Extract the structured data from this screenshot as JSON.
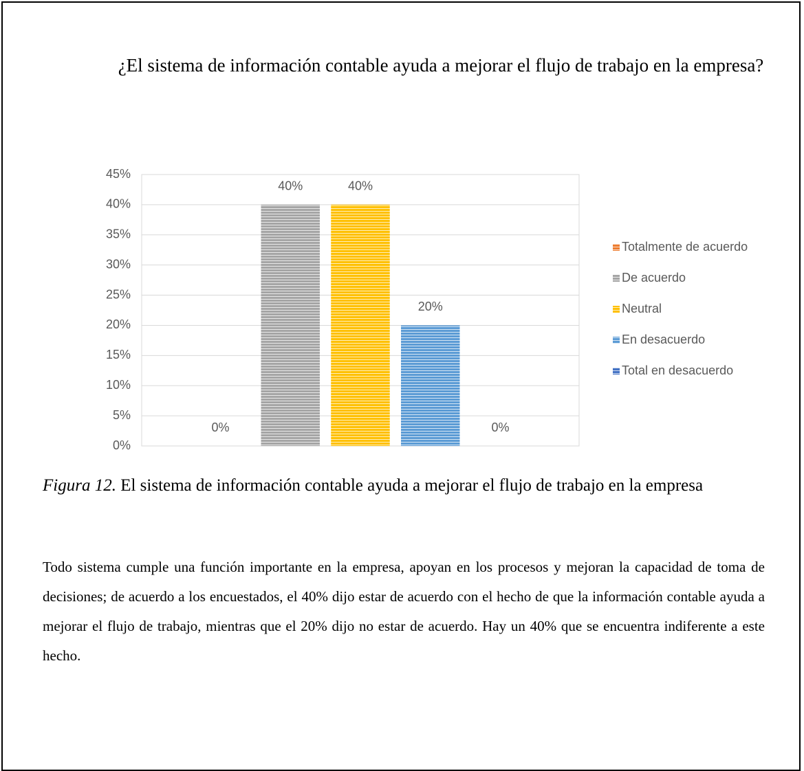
{
  "chart_data": {
    "type": "bar",
    "title": "¿El sistema de información contable ayuda a mejorar el flujo de trabajo en la empresa?",
    "categories": [
      null
    ],
    "series": [
      {
        "name": "Totalmente de acuerdo",
        "color": "#ed7d31",
        "values": [
          0
        ],
        "value_labels": [
          "0%"
        ]
      },
      {
        "name": "De acuerdo",
        "color": "#a5a5a5",
        "values": [
          40
        ],
        "value_labels": [
          "40%"
        ]
      },
      {
        "name": "Neutral",
        "color": "#ffc000",
        "values": [
          40
        ],
        "value_labels": [
          "40%"
        ]
      },
      {
        "name": "En desacuerdo",
        "color": "#5b9bd5",
        "values": [
          20
        ],
        "value_labels": [
          "20%"
        ]
      },
      {
        "name": "Total en desacuerdo",
        "color": "#4472c4",
        "values": [
          0
        ],
        "value_labels": [
          "0%"
        ]
      }
    ],
    "ylim": [
      0,
      45
    ],
    "yticks": [
      {
        "value": 0,
        "label": "0%"
      },
      {
        "value": 5,
        "label": "5%"
      },
      {
        "value": 10,
        "label": "10%"
      },
      {
        "value": 15,
        "label": "15%"
      },
      {
        "value": 20,
        "label": "20%"
      },
      {
        "value": 25,
        "label": "25%"
      },
      {
        "value": 30,
        "label": "30%"
      },
      {
        "value": 35,
        "label": "35%"
      },
      {
        "value": 40,
        "label": "40%"
      },
      {
        "value": 45,
        "label": "45%"
      }
    ],
    "grid": true,
    "legend": "right"
  },
  "caption": {
    "label": "Figura 12.",
    "text": "El sistema de información contable ayuda a mejorar el flujo de trabajo en la empresa"
  },
  "paragraph": "Todo sistema cumple una función importante en la empresa, apoyan en los procesos y mejoran la capacidad de toma de decisiones; de acuerdo a los encuestados, el 40% dijo estar de acuerdo con el hecho de que la información contable ayuda a mejorar el flujo de trabajo, mientras que el 20% dijo no estar de acuerdo. Hay un 40% que se encuentra indiferente a este hecho."
}
